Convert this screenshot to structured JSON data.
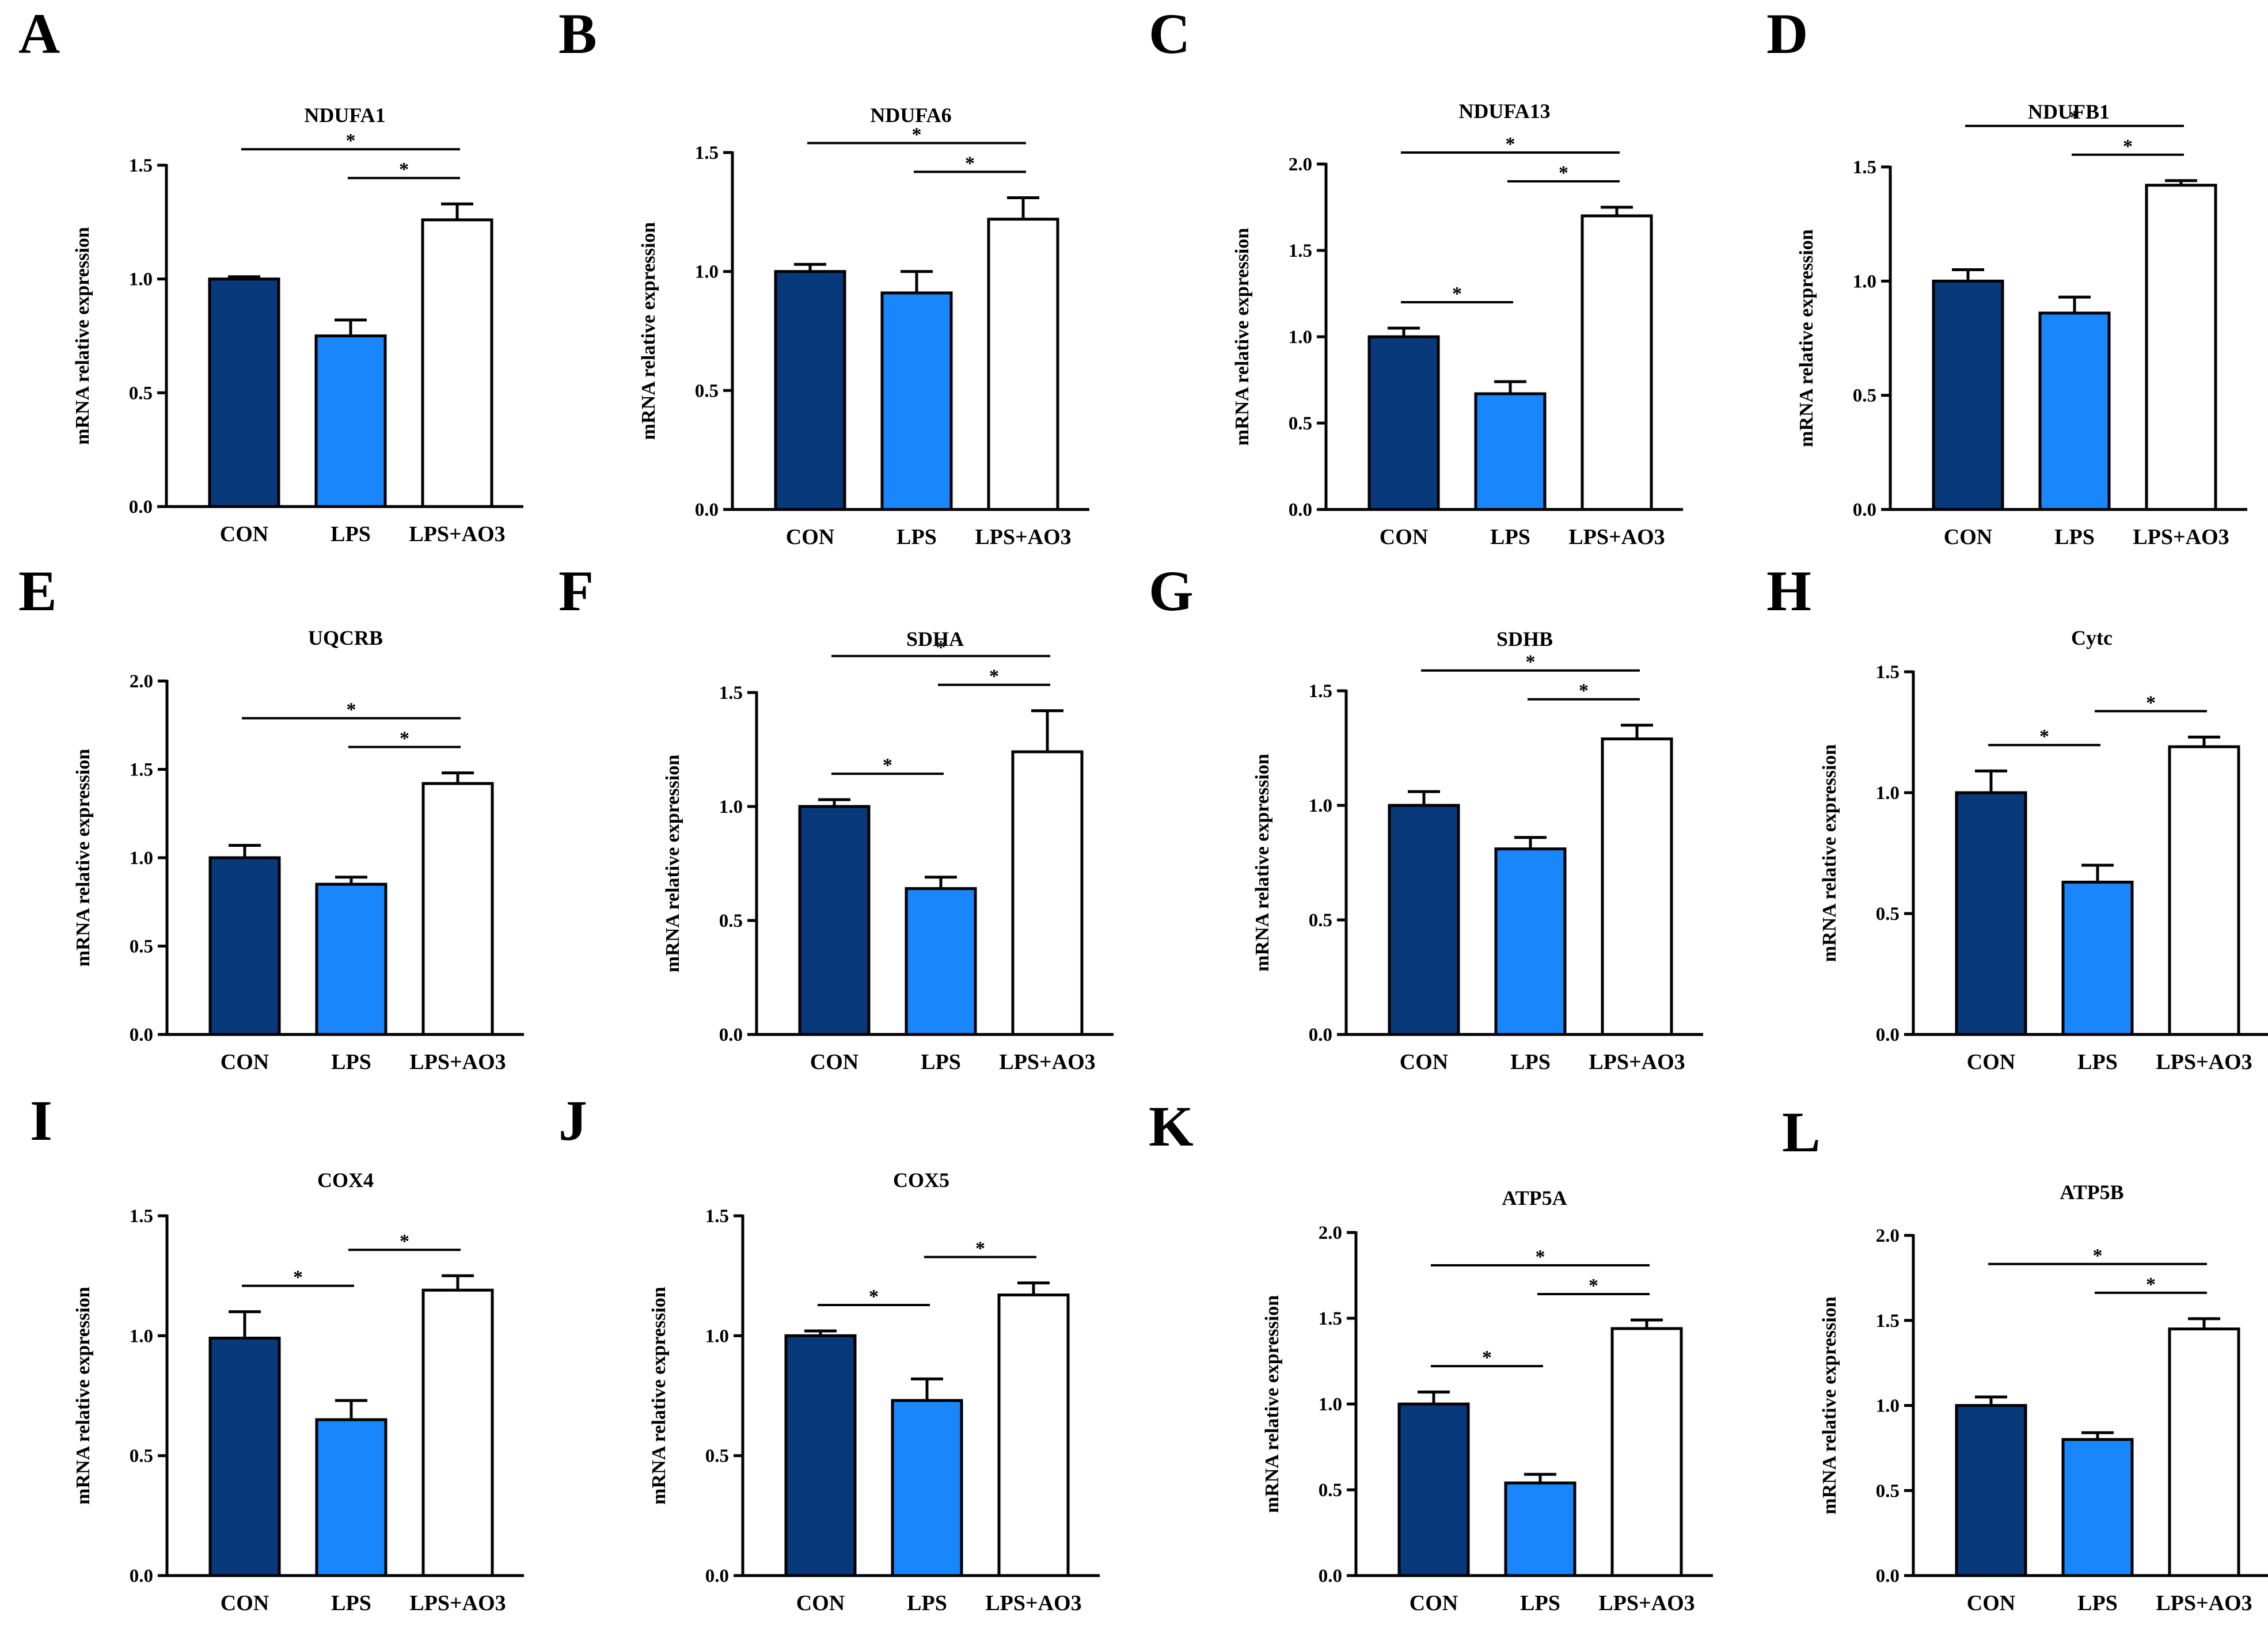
{
  "colors": {
    "CON": "#08397a",
    "LPS": "#1a86fb",
    "LPS+AO3": "#ffffff",
    "outline": "#000000"
  },
  "chart_data": [
    {
      "panel": "A",
      "type": "bar",
      "title": "NDUFA1",
      "ylabel": "mRNA relative expression",
      "categories": [
        "CON",
        "LPS",
        "LPS+AO3"
      ],
      "values": [
        1.0,
        0.75,
        1.26
      ],
      "errors": [
        0.01,
        0.07,
        0.07
      ],
      "ylim": [
        0,
        1.5
      ],
      "yticks": [
        "0.0",
        "0.5",
        "1.0",
        "1.5"
      ],
      "significance": [
        {
          "from": 0,
          "to": 2,
          "label": "*"
        },
        {
          "from": 1,
          "to": 2,
          "label": "*"
        }
      ]
    },
    {
      "panel": "B",
      "type": "bar",
      "title": "NDUFA6",
      "ylabel": "mRNA relative expression",
      "categories": [
        "CON",
        "LPS",
        "LPS+AO3"
      ],
      "values": [
        1.0,
        0.91,
        1.22
      ],
      "errors": [
        0.03,
        0.09,
        0.09
      ],
      "ylim": [
        0,
        1.5
      ],
      "yticks": [
        "0.0",
        "0.5",
        "1.0",
        "1.5"
      ],
      "significance": [
        {
          "from": 0,
          "to": 2,
          "label": "*"
        },
        {
          "from": 1,
          "to": 2,
          "label": "*"
        }
      ]
    },
    {
      "panel": "C",
      "type": "bar",
      "title": "NDUFA13",
      "ylabel": "mRNA relative expression",
      "categories": [
        "CON",
        "LPS",
        "LPS+AO3"
      ],
      "values": [
        1.0,
        0.67,
        1.7
      ],
      "errors": [
        0.05,
        0.07,
        0.05
      ],
      "ylim": [
        0,
        2.0
      ],
      "yticks": [
        "0.0",
        "0.5",
        "1.0",
        "1.5",
        "2.0"
      ],
      "significance": [
        {
          "from": 0,
          "to": 2,
          "label": "*"
        },
        {
          "from": 1,
          "to": 2,
          "label": "*"
        },
        {
          "from": 0,
          "to": 1,
          "label": "*"
        }
      ]
    },
    {
      "panel": "D",
      "type": "bar",
      "title": "NDUFB1",
      "ylabel": "mRNA relative expression",
      "categories": [
        "CON",
        "LPS",
        "LPS+AO3"
      ],
      "values": [
        1.0,
        0.86,
        1.42
      ],
      "errors": [
        0.05,
        0.07,
        0.02
      ],
      "ylim": [
        0,
        1.5
      ],
      "yticks": [
        "0.0",
        "0.5",
        "1.0",
        "1.5"
      ],
      "significance": [
        {
          "from": 0,
          "to": 2,
          "label": "*"
        },
        {
          "from": 1,
          "to": 2,
          "label": "*"
        }
      ]
    },
    {
      "panel": "E",
      "type": "bar",
      "title": "UQCRB",
      "ylabel": "mRNA relative expression",
      "categories": [
        "CON",
        "LPS",
        "LPS+AO3"
      ],
      "values": [
        1.0,
        0.85,
        1.42
      ],
      "errors": [
        0.07,
        0.04,
        0.06
      ],
      "ylim": [
        0,
        2.0
      ],
      "yticks": [
        "0.0",
        "0.5",
        "1.0",
        "1.5",
        "2.0"
      ],
      "significance": [
        {
          "from": 0,
          "to": 2,
          "label": "*"
        },
        {
          "from": 1,
          "to": 2,
          "label": "*"
        }
      ]
    },
    {
      "panel": "F",
      "type": "bar",
      "title": "SDHA",
      "ylabel": "mRNA relative expression",
      "categories": [
        "CON",
        "LPS",
        "LPS+AO3"
      ],
      "values": [
        1.0,
        0.64,
        1.24
      ],
      "errors": [
        0.03,
        0.05,
        0.18
      ],
      "ylim": [
        0,
        1.5
      ],
      "yticks": [
        "0.0",
        "0.5",
        "1.0",
        "1.5"
      ],
      "significance": [
        {
          "from": 0,
          "to": 2,
          "label": "*"
        },
        {
          "from": 1,
          "to": 2,
          "label": "*"
        },
        {
          "from": 0,
          "to": 1,
          "label": "*"
        }
      ]
    },
    {
      "panel": "G",
      "type": "bar",
      "title": "SDHB",
      "ylabel": "mRNA relative expression",
      "categories": [
        "CON",
        "LPS",
        "LPS+AO3"
      ],
      "values": [
        1.0,
        0.81,
        1.29
      ],
      "errors": [
        0.06,
        0.05,
        0.06
      ],
      "ylim": [
        0,
        1.5
      ],
      "yticks": [
        "0.0",
        "0.5",
        "1.0",
        "1.5"
      ],
      "significance": [
        {
          "from": 0,
          "to": 2,
          "label": "*"
        },
        {
          "from": 1,
          "to": 2,
          "label": "*"
        }
      ]
    },
    {
      "panel": "H",
      "type": "bar",
      "title": "Cytc",
      "ylabel": "mRNA relative expression",
      "categories": [
        "CON",
        "LPS",
        "LPS+AO3"
      ],
      "values": [
        1.0,
        0.63,
        1.19
      ],
      "errors": [
        0.09,
        0.07,
        0.04
      ],
      "ylim": [
        0,
        1.5
      ],
      "yticks": [
        "0.0",
        "0.5",
        "1.0",
        "1.5"
      ],
      "significance": [
        {
          "from": 0,
          "to": 1,
          "label": "*"
        },
        {
          "from": 1,
          "to": 2,
          "label": "*"
        }
      ]
    },
    {
      "panel": "I",
      "type": "bar",
      "title": "COX4",
      "ylabel": "mRNA relative expression",
      "categories": [
        "CON",
        "LPS",
        "LPS+AO3"
      ],
      "values": [
        0.99,
        0.65,
        1.19
      ],
      "errors": [
        0.11,
        0.08,
        0.06
      ],
      "ylim": [
        0,
        1.5
      ],
      "yticks": [
        "0.0",
        "0.5",
        "1.0",
        "1.5"
      ],
      "significance": [
        {
          "from": 0,
          "to": 1,
          "label": "*"
        },
        {
          "from": 1,
          "to": 2,
          "label": "*"
        }
      ]
    },
    {
      "panel": "J",
      "type": "bar",
      "title": "COX5",
      "ylabel": "mRNA relative expression",
      "categories": [
        "CON",
        "LPS",
        "LPS+AO3"
      ],
      "values": [
        1.0,
        0.73,
        1.17
      ],
      "errors": [
        0.02,
        0.09,
        0.05
      ],
      "ylim": [
        0,
        1.5
      ],
      "yticks": [
        "0.0",
        "0.5",
        "1.0",
        "1.5"
      ],
      "significance": [
        {
          "from": 0,
          "to": 1,
          "label": "*"
        },
        {
          "from": 1,
          "to": 2,
          "label": "*"
        }
      ]
    },
    {
      "panel": "K",
      "type": "bar",
      "title": "ATP5A",
      "ylabel": "mRNA relative expression",
      "categories": [
        "CON",
        "LPS",
        "LPS+AO3"
      ],
      "values": [
        1.0,
        0.54,
        1.44
      ],
      "errors": [
        0.07,
        0.05,
        0.05
      ],
      "ylim": [
        0,
        2.0
      ],
      "yticks": [
        "0.0",
        "0.5",
        "1.0",
        "1.5",
        "2.0"
      ],
      "significance": [
        {
          "from": 0,
          "to": 2,
          "label": "*"
        },
        {
          "from": 1,
          "to": 2,
          "label": "*"
        },
        {
          "from": 0,
          "to": 1,
          "label": "*"
        }
      ]
    },
    {
      "panel": "L",
      "type": "bar",
      "title": "ATP5B",
      "ylabel": "mRNA relative expression",
      "categories": [
        "CON",
        "LPS",
        "LPS+AO3"
      ],
      "values": [
        1.0,
        0.8,
        1.45
      ],
      "errors": [
        0.05,
        0.04,
        0.06
      ],
      "ylim": [
        0,
        2.0
      ],
      "yticks": [
        "0.0",
        "0.5",
        "1.0",
        "1.5",
        "2.0"
      ],
      "significance": [
        {
          "from": 0,
          "to": 2,
          "label": "*"
        },
        {
          "from": 1,
          "to": 2,
          "label": "*"
        }
      ]
    }
  ]
}
